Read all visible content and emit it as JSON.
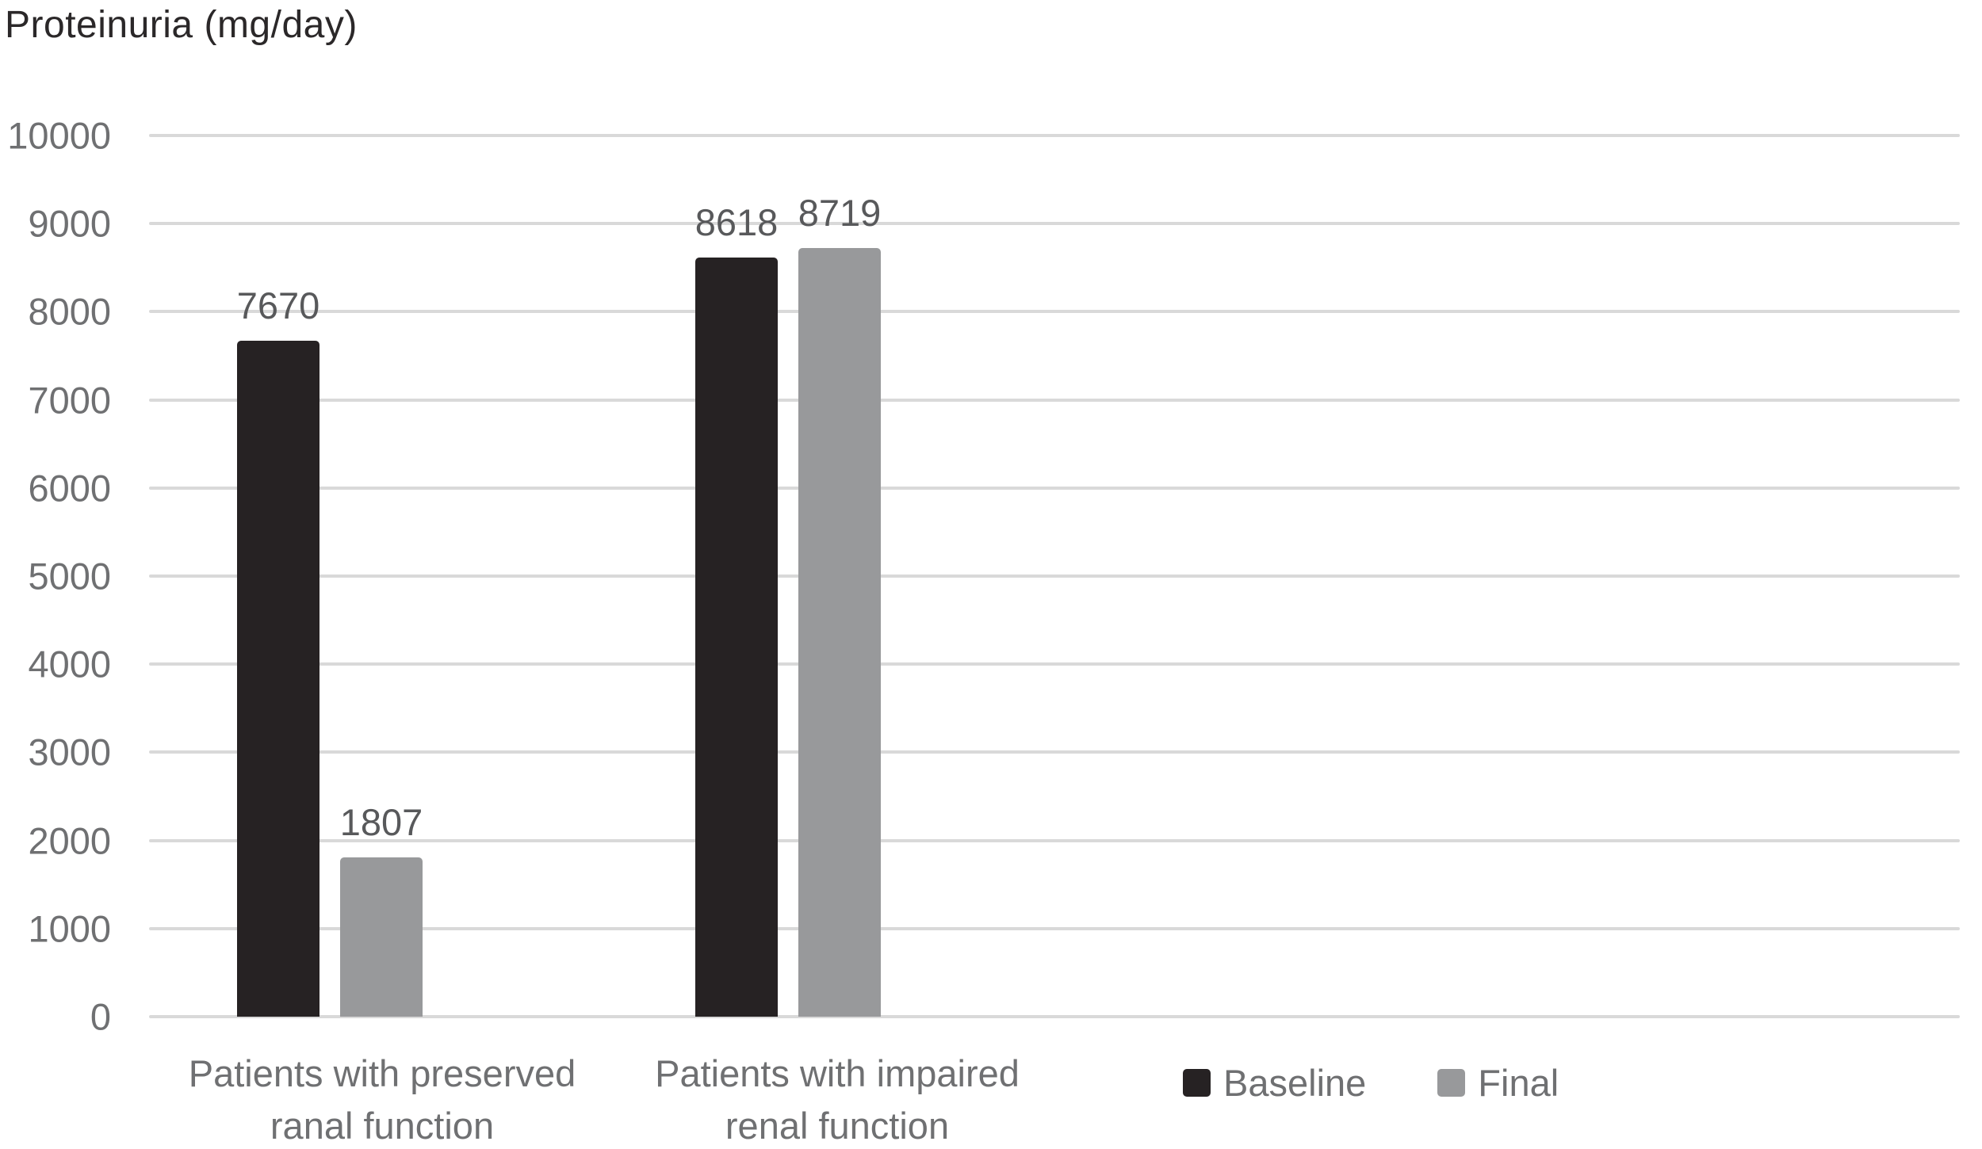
{
  "chart_data": {
    "type": "bar",
    "title": "Proteinuria (mg/day)",
    "categories": [
      "Patients with preserved ranal function",
      "Patients with impaired renal function"
    ],
    "category_lines": [
      [
        "Patients with preserved",
        "ranal function"
      ],
      [
        "Patients with impaired",
        "renal function"
      ]
    ],
    "series": [
      {
        "name": "Baseline",
        "color": "#262223",
        "values": [
          7670,
          8618
        ]
      },
      {
        "name": "Final",
        "color": "#98999b",
        "values": [
          1807,
          8719
        ]
      }
    ],
    "ylim": [
      0,
      10000
    ],
    "ytick_step": 1000,
    "yticks": [
      0,
      1000,
      2000,
      3000,
      4000,
      5000,
      6000,
      7000,
      8000,
      9000,
      10000
    ],
    "grid": true,
    "data_labels": true,
    "legend_position": "bottom-right",
    "colors": {
      "gridline": "#d9d9d9",
      "tick_text": "#6f7072",
      "data_label_text": "#58595b",
      "title_text": "#2b2829"
    }
  }
}
